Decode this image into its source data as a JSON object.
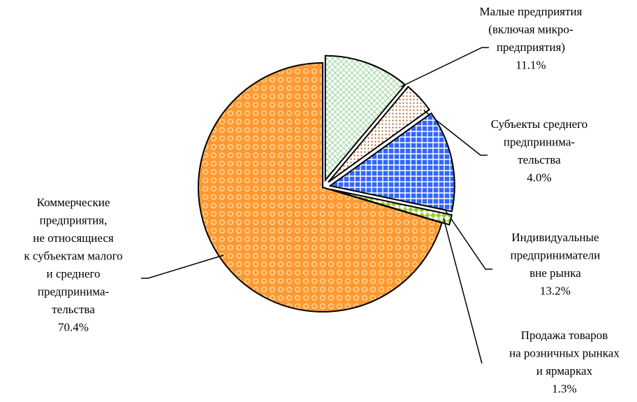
{
  "chart_data": {
    "type": "pie",
    "categories": [
      "Малые предприятия\n(включая микро-\nпредприятия)",
      "Субъекты среднего\nпредпринима-\nтельства",
      "Индивидуальные\nпредприниматели\nвне рынка",
      "Продажа товаров\nна розничных рынках\nи ярмарках",
      "Коммерческие\nпредприятия,\nне относящиеся\nк субъектам малого\nи среднего\nпредпринима-\nтельства"
    ],
    "values": [
      11.1,
      4.0,
      13.2,
      1.3,
      70.4
    ],
    "value_labels": [
      "11.1%",
      "4.0%",
      "13.2%",
      "1.3%",
      "70.4%"
    ],
    "colors": [
      "#c8f0c8",
      "#f0c890",
      "#3366ff",
      "#99cc33",
      "#ff9933"
    ]
  }
}
